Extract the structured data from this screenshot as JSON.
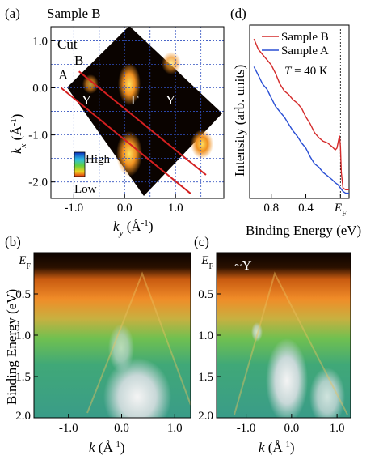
{
  "figure": {
    "panels": [
      "(a)",
      "(b)",
      "(c)",
      "(d)"
    ]
  },
  "chart_data": [
    {
      "panel": "(a)",
      "type": "heatmap",
      "title": "Sample B",
      "xlabel_main": "k",
      "xlabel_sub": "y",
      "xlabel_unit": " (Å",
      "xlabel_exp": "-1",
      "xlabel_close": ")",
      "ylabel_main": "k",
      "ylabel_sub": "x",
      "ylabel_unit": " (Å",
      "ylabel_exp": "-1",
      "ylabel_close": ")",
      "xlim": [
        -1.45,
        1.95
      ],
      "ylim": [
        -2.35,
        1.3
      ],
      "xticks": [
        -1.0,
        0.0,
        1.0
      ],
      "xtick_labels": [
        "-1.0",
        "0.0",
        "1.0"
      ],
      "yticks": [
        1.0,
        0.0,
        -1.0,
        -2.0
      ],
      "ytick_labels": [
        "1.0",
        "0.0",
        "-1.0",
        "-2.0"
      ],
      "cut_label": "Cut",
      "cuts": [
        {
          "name": "A",
          "x": [
            -1.25,
            1.3
          ],
          "y": [
            0.0,
            -2.25
          ]
        },
        {
          "name": "B",
          "x": [
            -0.9,
            1.6
          ],
          "y": [
            0.35,
            -1.85
          ]
        }
      ],
      "point_labels": [
        {
          "text": "Y",
          "x": -0.8,
          "y": -0.18
        },
        {
          "text": "Γ",
          "x": 0.12,
          "y": -0.18
        },
        {
          "text": "Y",
          "x": 1.12,
          "y": -0.18
        }
      ],
      "colorbar": {
        "high": "High",
        "low": "Low"
      },
      "colors": {
        "map_background": "#0a0300",
        "hot": "#ffa020",
        "cut_line": "#d42020",
        "grid": "#3050c0"
      }
    },
    {
      "panel": "(b)",
      "type": "heatmap",
      "xlabel_main": "k",
      "xlabel_unit": " (Å",
      "xlabel_exp": "-1",
      "xlabel_close": ")",
      "ylabel": "Binding Energy (eV)",
      "xlim": [
        -1.65,
        1.3
      ],
      "ylim": [
        0.0,
        2.0
      ],
      "xticks": [
        -1.0,
        0.0,
        1.0
      ],
      "xtick_labels": [
        "-1.0",
        "0.0",
        "1.0"
      ],
      "yticks": [
        0.0,
        0.5,
        1.0,
        1.5,
        2.0
      ],
      "ytick_labels": [
        "E",
        "0.5",
        "1.0",
        "1.5",
        "2.0"
      ],
      "ytick0_sub": "F",
      "colors": {
        "top": "#1a0800",
        "mid": "#e87820",
        "low": "#3aa070",
        "deep": "#c8d8d8"
      }
    },
    {
      "panel": "(c)",
      "type": "heatmap",
      "xlabel_main": "k",
      "xlabel_unit": " (Å",
      "xlabel_exp": "-1",
      "xlabel_close": ")",
      "xlim": [
        -1.65,
        1.3
      ],
      "ylim": [
        0.0,
        2.0
      ],
      "xticks": [
        -1.0,
        0.0,
        1.0
      ],
      "xtick_labels": [
        "-1.0",
        "0.0",
        "1.0"
      ],
      "yticks": [
        0.0,
        0.5,
        1.0,
        1.5,
        2.0
      ],
      "ytick_labels": [
        "E",
        "0.5",
        "1.0",
        "1.5",
        "2.0"
      ],
      "ytick0_sub": "F",
      "annotation": "~Y"
    },
    {
      "panel": "(d)",
      "type": "line",
      "xlabel": "Binding Energy (eV)",
      "ylabel": "Intensity (arb. units)",
      "xlim": [
        1.05,
        -0.1
      ],
      "xticks": [
        0.8,
        0.4,
        0.0
      ],
      "xtick_labels": [
        "0.8",
        "0.4",
        "E"
      ],
      "xtick0_sub": "F",
      "annotation_T": "T",
      "annotation_rest": " = 40 K",
      "ef_marker": 0.0,
      "series": [
        {
          "name": "Sample B",
          "color": "#d42a2a",
          "x": [
            1.0,
            0.95,
            0.9,
            0.85,
            0.8,
            0.75,
            0.7,
            0.65,
            0.6,
            0.55,
            0.5,
            0.45,
            0.4,
            0.35,
            0.3,
            0.25,
            0.2,
            0.15,
            0.1,
            0.06,
            0.04,
            0.02,
            0.01,
            0.0,
            -0.01,
            -0.03,
            -0.06,
            -0.1
          ],
          "y": [
            0.92,
            0.86,
            0.83,
            0.8,
            0.77,
            0.72,
            0.66,
            0.62,
            0.6,
            0.57,
            0.55,
            0.52,
            0.47,
            0.43,
            0.38,
            0.35,
            0.33,
            0.32,
            0.3,
            0.28,
            0.29,
            0.34,
            0.36,
            0.3,
            0.15,
            0.06,
            0.05,
            0.05
          ]
        },
        {
          "name": "Sample A",
          "color": "#2a4fd4",
          "x": [
            1.0,
            0.95,
            0.9,
            0.85,
            0.8,
            0.75,
            0.7,
            0.65,
            0.6,
            0.55,
            0.5,
            0.45,
            0.4,
            0.35,
            0.3,
            0.25,
            0.2,
            0.15,
            0.1,
            0.06,
            0.03,
            0.0,
            -0.03,
            -0.06,
            -0.1
          ],
          "y": [
            0.76,
            0.71,
            0.66,
            0.63,
            0.58,
            0.53,
            0.5,
            0.47,
            0.43,
            0.39,
            0.36,
            0.32,
            0.29,
            0.24,
            0.2,
            0.18,
            0.15,
            0.13,
            0.11,
            0.09,
            0.08,
            0.06,
            0.04,
            0.03,
            0.03
          ]
        }
      ]
    }
  ]
}
